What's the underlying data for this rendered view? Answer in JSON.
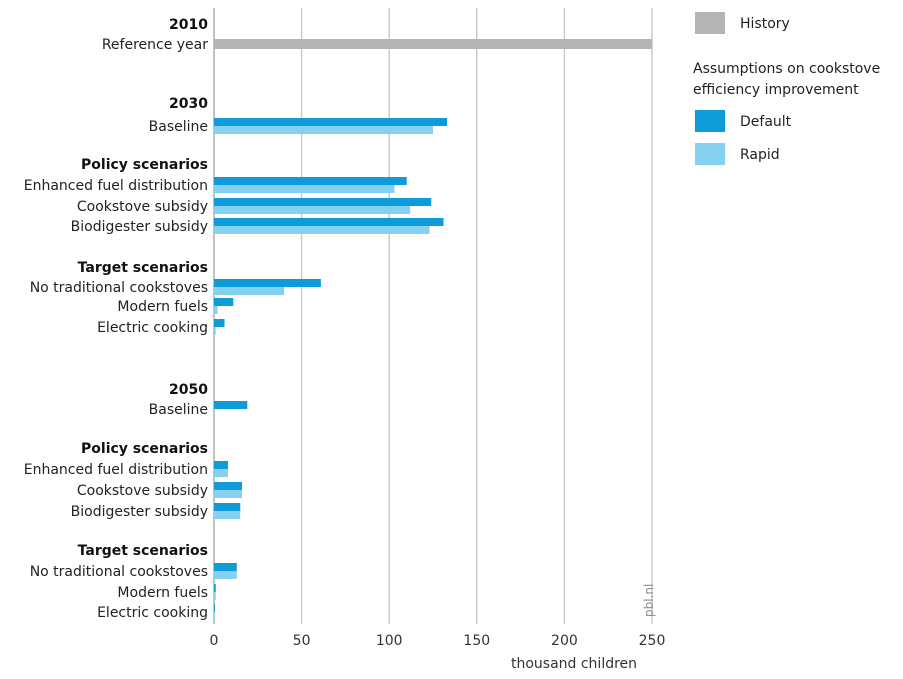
{
  "chart_data": {
    "type": "bar",
    "orientation": "horizontal",
    "title": "",
    "xlabel": "thousand children",
    "xlim": [
      0,
      250
    ],
    "xticks": [
      0,
      50,
      100,
      150,
      200,
      250
    ],
    "grid": true,
    "legend_position": "top-right",
    "legend": {
      "history": "History",
      "heading": [
        "Assumptions on cookstove",
        "efficiency improvement"
      ],
      "default": "Default",
      "rapid": "Rapid"
    },
    "colors": {
      "history": "#b4b4b4",
      "default": "#0f9ad8",
      "rapid": "#86d0f0",
      "grid": "#cccccc",
      "axis": "#999999"
    },
    "source": "pbl.nl",
    "rows": [
      {
        "kind": "header",
        "label": "2010"
      },
      {
        "kind": "bar",
        "label": "Reference year",
        "history": 250
      },
      {
        "kind": "header",
        "label": "2030"
      },
      {
        "kind": "bar",
        "label": "Baseline",
        "default": 133,
        "rapid": 125
      },
      {
        "kind": "header",
        "label": "Policy scenarios"
      },
      {
        "kind": "bar",
        "label": "Enhanced fuel distribution",
        "default": 110,
        "rapid": 103
      },
      {
        "kind": "bar",
        "label": "Cookstove subsidy",
        "default": 124,
        "rapid": 112
      },
      {
        "kind": "bar",
        "label": "Biodigester subsidy",
        "default": 131,
        "rapid": 123
      },
      {
        "kind": "header",
        "label": "Target scenarios"
      },
      {
        "kind": "bar",
        "label": "No traditional cookstoves",
        "default": 61,
        "rapid": 40
      },
      {
        "kind": "bar",
        "label": "Modern fuels",
        "default": 11,
        "rapid": 2
      },
      {
        "kind": "bar",
        "label": "Electric cooking",
        "default": 6,
        "rapid": 1
      },
      {
        "kind": "header",
        "label": "2050"
      },
      {
        "kind": "bar",
        "label": "Baseline",
        "default": 19,
        "rapid": 0
      },
      {
        "kind": "header",
        "label": "Policy scenarios"
      },
      {
        "kind": "bar",
        "label": "Enhanced fuel distribution",
        "default": 8,
        "rapid": 8
      },
      {
        "kind": "bar",
        "label": "Cookstove subsidy",
        "default": 16,
        "rapid": 16
      },
      {
        "kind": "bar",
        "label": "Biodigester subsidy",
        "default": 15,
        "rapid": 15
      },
      {
        "kind": "header",
        "label": "Target scenarios"
      },
      {
        "kind": "bar",
        "label": "No traditional cookstoves",
        "default": 13,
        "rapid": 13
      },
      {
        "kind": "bar",
        "label": "Modern fuels",
        "default": 1,
        "rapid": 1
      },
      {
        "kind": "bar",
        "label": "Electric cooking",
        "default": 0.5,
        "rapid": 0.5
      }
    ]
  }
}
